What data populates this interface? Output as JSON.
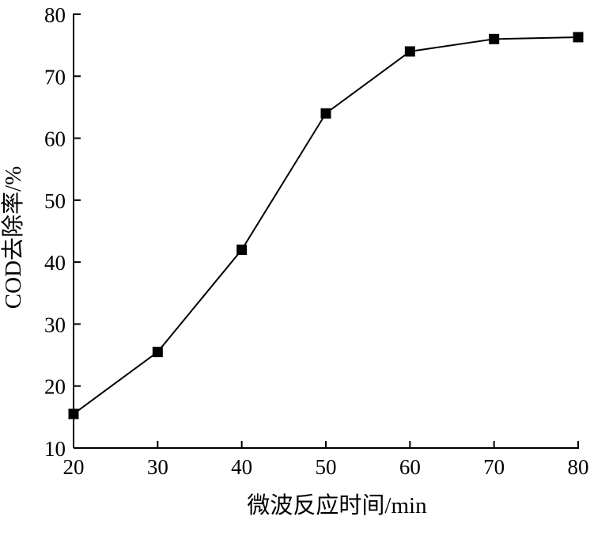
{
  "chart_data": {
    "type": "line",
    "xlabel": "微波反应时间/min",
    "ylabel": "COD去除率/%",
    "xlim": [
      20,
      80
    ],
    "ylim": [
      10,
      80
    ],
    "xticks": [
      20,
      30,
      40,
      50,
      60,
      70,
      80
    ],
    "yticks": [
      10,
      20,
      30,
      40,
      50,
      60,
      70,
      80
    ],
    "grid": false,
    "marker": "square",
    "color": "#000000",
    "series": [
      {
        "x": [
          20,
          30,
          40,
          50,
          60,
          70,
          80
        ],
        "values": [
          15.5,
          25.5,
          42,
          64,
          74,
          76,
          76.3
        ]
      }
    ]
  }
}
